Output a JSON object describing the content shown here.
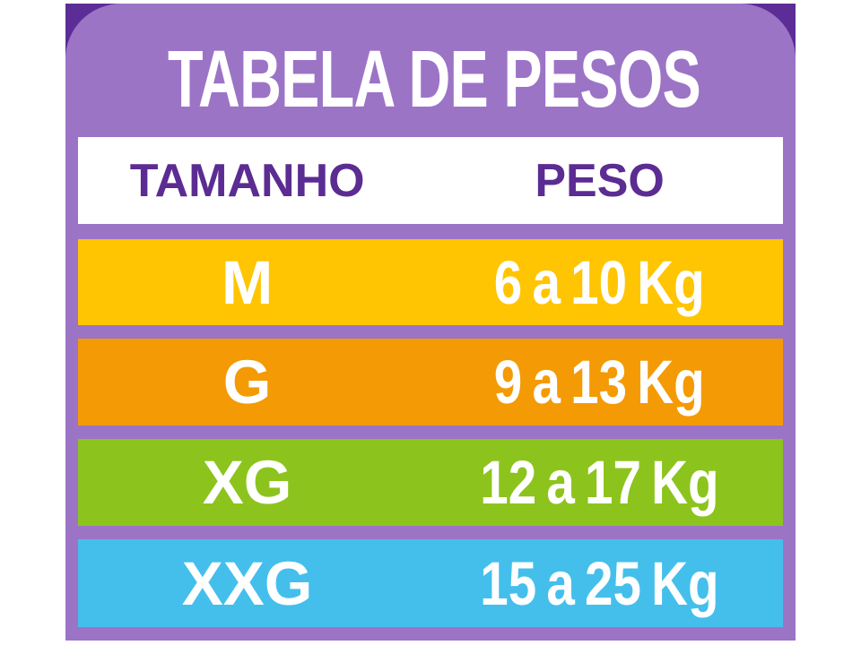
{
  "title": "TABELA DE PESOS",
  "table": {
    "headers": {
      "size": "TAMANHO",
      "weight": "PESO"
    },
    "rows": [
      {
        "size": "M",
        "weight": "6 a 10 Kg",
        "color": "#FFC502"
      },
      {
        "size": "G",
        "weight": "9 a 13 Kg",
        "color": "#F49A04"
      },
      {
        "size": "XG",
        "weight": "12 a 17 Kg",
        "color": "#8CC41D"
      },
      {
        "size": "XXG",
        "weight": "15 a 25 Kg",
        "color": "#44BFEC"
      }
    ]
  },
  "colors": {
    "page_bg": "#FFFFFF",
    "card": "#9C74C6",
    "card_corner_dark": "#5C2D96",
    "header_row_bg": "#FFFFFF",
    "header_text": "#5B2C92",
    "title_text": "#FFFFFF",
    "row_text": "#FFFFFF"
  },
  "chart_data": {
    "type": "table",
    "title": "TABELA DE PESOS",
    "columns": [
      "TAMANHO",
      "PESO"
    ],
    "rows": [
      [
        "M",
        "6 a 10 Kg"
      ],
      [
        "G",
        "9 a 13 Kg"
      ],
      [
        "XG",
        "12 a 17 Kg"
      ],
      [
        "XXG",
        "15 a 25 Kg"
      ]
    ],
    "row_colors": [
      "#FFC502",
      "#F49A04",
      "#8CC41D",
      "#44BFEC"
    ],
    "weights_kg": [
      {
        "size": "M",
        "min": 6,
        "max": 10
      },
      {
        "size": "G",
        "min": 9,
        "max": 13
      },
      {
        "size": "XG",
        "min": 12,
        "max": 17
      },
      {
        "size": "XXG",
        "min": 15,
        "max": 25
      }
    ]
  }
}
